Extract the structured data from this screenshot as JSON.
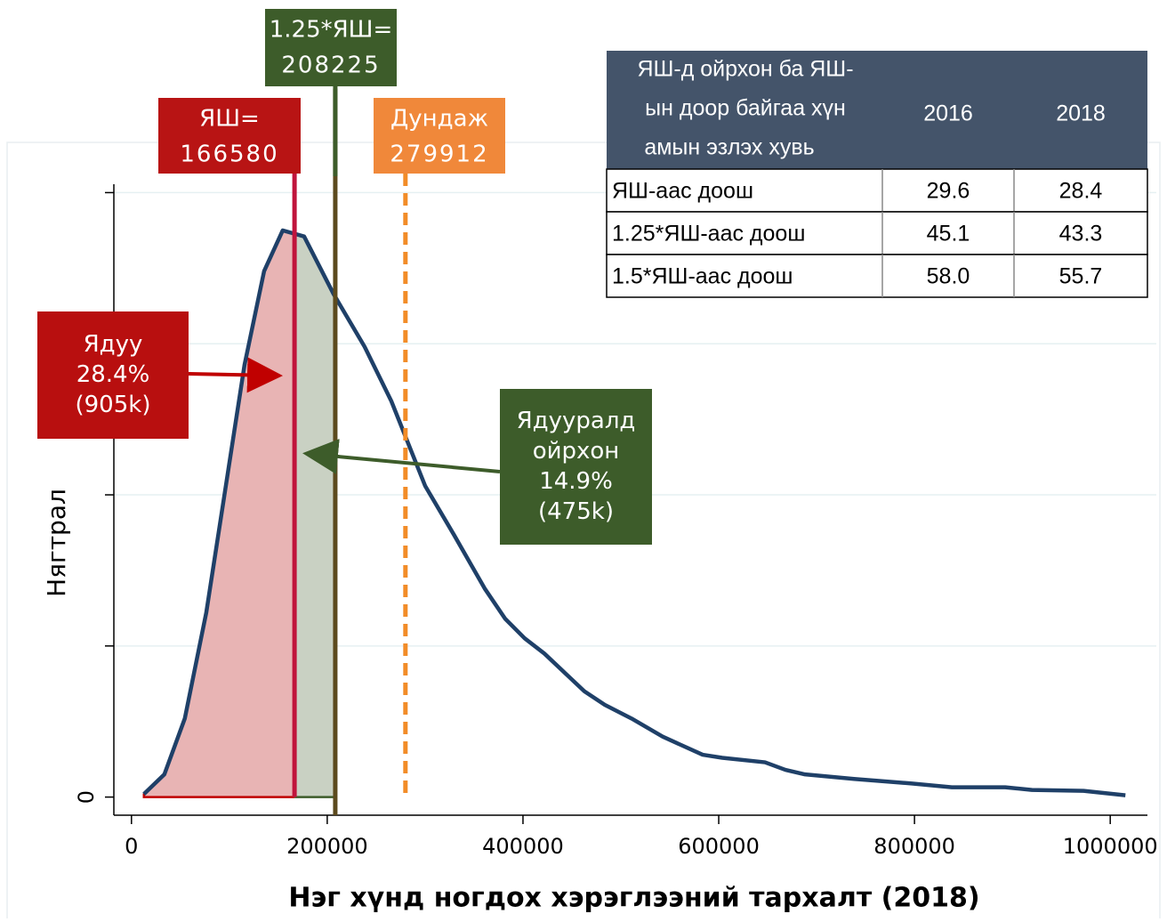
{
  "chart_data": {
    "type": "density",
    "x_label": "Нэг хүнд ногдох хэрэглээний тархалт (2018)",
    "y_label": "Нягтрал",
    "xlim": [
      -18000,
      1038000
    ],
    "ylim": [
      -0.12,
      4.35
    ],
    "xticks": [
      0,
      200000,
      400000,
      600000,
      800000,
      1000000
    ],
    "yticks": [
      0,
      {
        "value": 1,
        "label": null
      },
      {
        "value": 2,
        "label": null
      },
      {
        "value": 3,
        "label": null
      },
      {
        "value": 4,
        "label": null
      }
    ],
    "grid": true,
    "color": "#1f4068",
    "x": [
      12700,
      33600,
      54500,
      76400,
      115500,
      135500,
      154500,
      176400,
      206400,
      238200,
      265500,
      300000,
      329100,
      360900,
      381800,
      401800,
      421800,
      462700,
      483600,
      510900,
      542700,
      583600,
      603600,
      647300,
      668200,
      688200,
      738200,
      797300,
      838200,
      892700,
      920000,
      972700,
      1015500
    ],
    "values": [
      0.02,
      0.15,
      0.52,
      1.22,
      2.86,
      3.48,
      3.75,
      3.71,
      3.33,
      2.98,
      2.62,
      2.06,
      1.74,
      1.38,
      1.18,
      1.05,
      0.95,
      0.7,
      0.61,
      0.52,
      0.4,
      0.28,
      0.26,
      0.23,
      0.18,
      0.15,
      0.12,
      0.09,
      0.065,
      0.065,
      0.047,
      0.041,
      0.012
    ],
    "vlines": [
      {
        "label": "ЯШ=",
        "value": 166580,
        "color": "#c0143c",
        "box_color": "#b81414"
      },
      {
        "label": "1.25*ЯШ=",
        "value": 208225,
        "color": "#5c4a1e",
        "box_color": "#3d5c2a"
      },
      {
        "label": "Дундаж",
        "value": 279912,
        "color": "#f28c28",
        "box_color": "#f0883a",
        "dashed": true
      }
    ],
    "fills": [
      {
        "from": 0,
        "to": 1,
        "color": "#e8b4b4",
        "edge": "#c00000"
      },
      {
        "from": 1,
        "to": 2,
        "color": "#c9d1c3",
        "edge": "#3d5c2a"
      }
    ],
    "annotations": [
      {
        "lines": [
          "Ядуу",
          "28.4%",
          "(905k)"
        ],
        "color": "#b80f0f"
      },
      {
        "lines": [
          "Ядууралд",
          "ойрхон",
          "14.9%",
          "(475k)"
        ],
        "color": "#3d5c2a"
      }
    ],
    "table": {
      "header": [
        [
          "ЯШ-д ойрхон ба ЯШ-",
          "ын доор байгаа хүн",
          "амын эзлэх хувь"
        ],
        "2016",
        "2018"
      ],
      "rows": [
        [
          "ЯШ-аас доош",
          "29.6",
          "28.4"
        ],
        [
          "1.25*ЯШ-аас доош",
          "45.1",
          "43.3"
        ],
        [
          "1.5*ЯШ-аас доош",
          "58.0",
          "55.7"
        ]
      ]
    }
  }
}
